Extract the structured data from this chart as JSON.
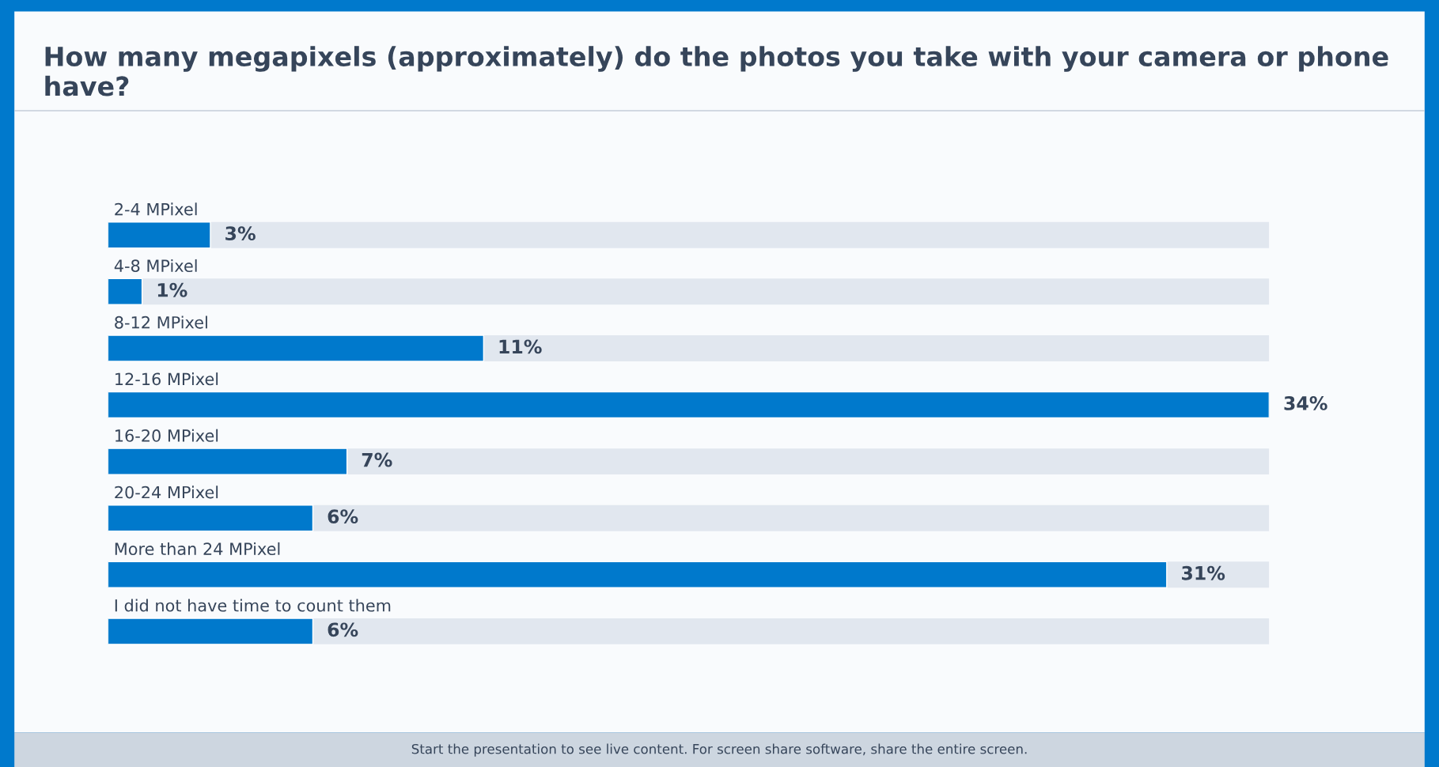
{
  "chart_data": {
    "type": "bar",
    "orientation": "horizontal",
    "title": "How many megapixels (approximately) do the photos you take with your camera or phone have?",
    "categories": [
      "2-4 MPixel",
      "4-8 MPixel",
      "8-12 MPixel",
      "12-16 MPixel",
      "16-20 MPixel",
      "20-24 MPixel",
      "More than 24 MPixel",
      "I did not have time to count them"
    ],
    "values": [
      3,
      1,
      11,
      34,
      7,
      6,
      31,
      6
    ],
    "value_labels": [
      "3%",
      "1%",
      "11%",
      "34%",
      "7%",
      "6%",
      "31%",
      "6%"
    ],
    "color": "#0079cc",
    "legend": false,
    "annotations": [
      "Start the presentation to see live content. For screen share software, share the entire screen."
    ]
  }
}
